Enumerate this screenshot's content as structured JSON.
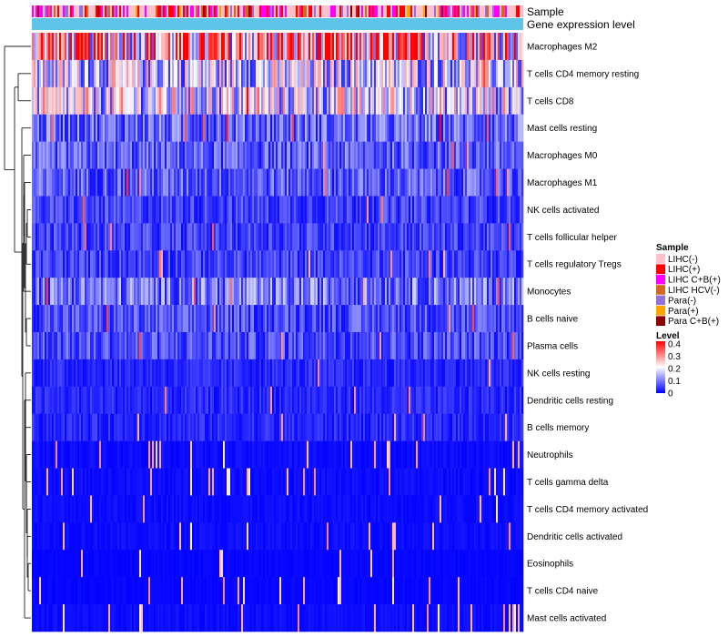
{
  "chart_data": {
    "type": "heatmap",
    "annotations": [
      {
        "name": "Sample"
      },
      {
        "name": "Gene expression level"
      }
    ],
    "rows": [
      {
        "label": "Macrophages M2",
        "mean": 0.26
      },
      {
        "label": "T cells CD4 memory resting",
        "mean": 0.16
      },
      {
        "label": "T cells CD8",
        "mean": 0.17
      },
      {
        "label": "Mast cells resting",
        "mean": 0.08
      },
      {
        "label": "Macrophages M0",
        "mean": 0.07
      },
      {
        "label": "Macrophages M1",
        "mean": 0.07
      },
      {
        "label": "NK cells activated",
        "mean": 0.05
      },
      {
        "label": "T cells follicular helper",
        "mean": 0.05
      },
      {
        "label": "T cells regulatory  Tregs",
        "mean": 0.05
      },
      {
        "label": "Monocytes",
        "mean": 0.09
      },
      {
        "label": "B cells naive",
        "mean": 0.06
      },
      {
        "label": "Plasma cells",
        "mean": 0.06
      },
      {
        "label": "NK cells resting",
        "mean": 0.03
      },
      {
        "label": "Dendritic cells resting",
        "mean": 0.03
      },
      {
        "label": "B cells memory",
        "mean": 0.03
      },
      {
        "label": "Neutrophils",
        "mean": 0.01
      },
      {
        "label": "T cells gamma delta",
        "mean": 0.01
      },
      {
        "label": "T cells CD4 memory activated",
        "mean": 0.01
      },
      {
        "label": "Dendritic cells activated",
        "mean": 0.01
      },
      {
        "label": "Eosinophils",
        "mean": 0.005
      },
      {
        "label": "T cells CD4 naive",
        "mean": 0.005
      },
      {
        "label": "Mast cells activated",
        "mean": 0.01
      }
    ],
    "legend_sample": {
      "title": "Sample",
      "entries": [
        {
          "label": "LIHC(-)",
          "color": "#ffc0cb"
        },
        {
          "label": "LIHC(+)",
          "color": "#ff0000"
        },
        {
          "label": "LIHC C+B(+)",
          "color": "#ff00ff"
        },
        {
          "label": "LIHC HCV(-)",
          "color": "#d2691e"
        },
        {
          "label": "Para(-)",
          "color": "#9370db"
        },
        {
          "label": "Para(+)",
          "color": "#ffa500"
        },
        {
          "label": "Para C+B(+)",
          "color": "#8b0000"
        }
      ]
    },
    "legend_level": {
      "title": "Level",
      "ticks": [
        "0.4",
        "0.3",
        "0.2",
        "0.1",
        "0"
      ],
      "range": [
        0,
        0.4
      ]
    },
    "gene_expression_color": "#5ec4e8"
  }
}
